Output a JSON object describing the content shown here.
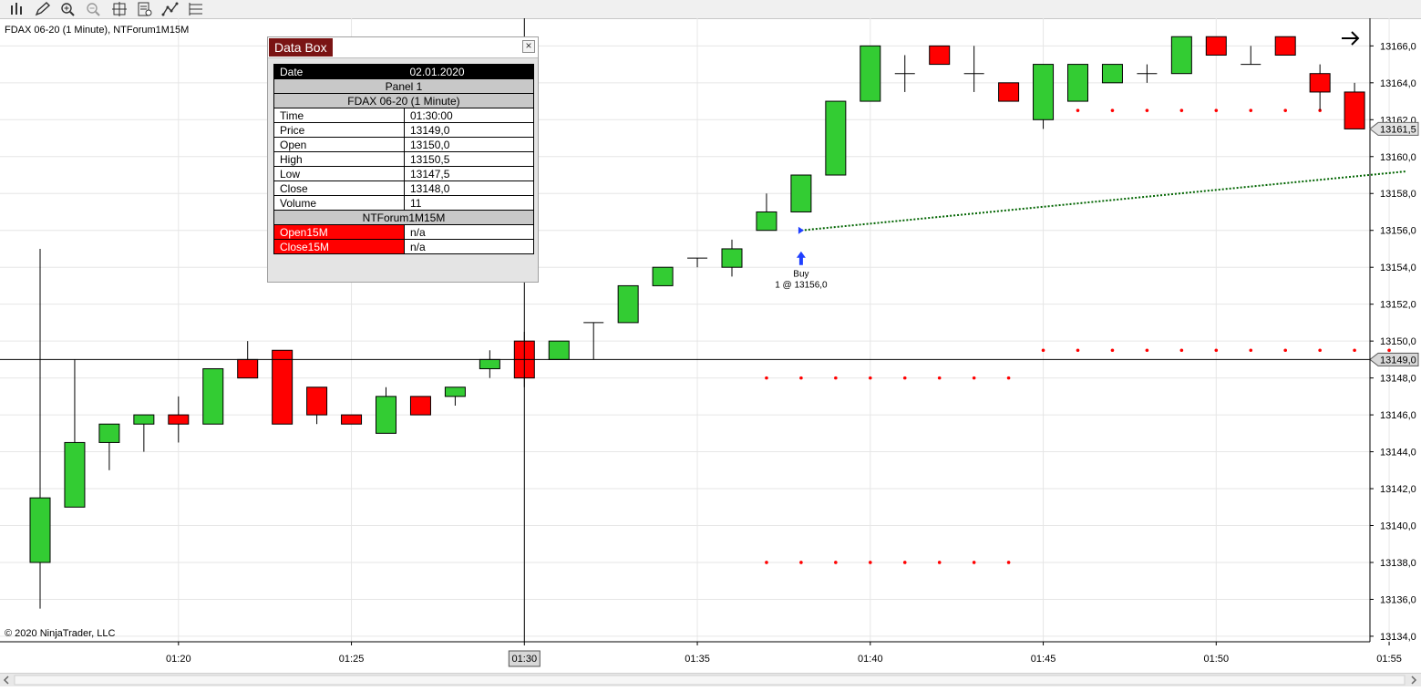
{
  "window": {
    "chart_label": "FDAX 06-20 (1 Minute), NTForum1M15M",
    "copyright": "© 2020 NinjaTrader, LLC"
  },
  "toolbar": {
    "icons": [
      "bars-icon",
      "pencil-icon",
      "zoom-in-icon",
      "zoom-out-icon",
      "crosshair-icon",
      "properties-icon",
      "strategy-icon",
      "list-icon"
    ]
  },
  "databox": {
    "title": "Data Box",
    "close_label": "×",
    "date_label": "Date",
    "date_value": "02.01.2020",
    "panel_label": "Panel 1",
    "instrument_label": "FDAX 06-20 (1 Minute)",
    "rows": [
      {
        "label": "Time",
        "value": "01:30:00"
      },
      {
        "label": "Price",
        "value": "13149,0"
      },
      {
        "label": "Open",
        "value": "13150,0"
      },
      {
        "label": "High",
        "value": "13150,5"
      },
      {
        "label": "Low",
        "value": "13147,5"
      },
      {
        "label": "Close",
        "value": "13148,0"
      },
      {
        "label": "Volume",
        "value": "11"
      }
    ],
    "indicator_label": "NTForum1M15M",
    "indicator_rows": [
      {
        "label": "Open15M",
        "value": "n/a"
      },
      {
        "label": "Close15M",
        "value": "n/a"
      }
    ]
  },
  "chart_data": {
    "type": "candlestick",
    "instrument": "FDAX 06-20 (1 Minute), NTForum1M15M",
    "ylim": [
      13133.7,
      13167.5
    ],
    "y_ticks": [
      "13134,0",
      "13136,0",
      "13138,0",
      "13140,0",
      "13142,0",
      "13144,0",
      "13146,0",
      "13148,0",
      "13150,0",
      "13152,0",
      "13154,0",
      "13156,0",
      "13158,0",
      "13160,0",
      "13162,0",
      "13164,0",
      "13166,0"
    ],
    "x_ticks": [
      {
        "bar": 4,
        "label": "01:20"
      },
      {
        "bar": 9,
        "label": "01:25"
      },
      {
        "bar": 14,
        "label": "01:30"
      },
      {
        "bar": 19,
        "label": "01:35"
      },
      {
        "bar": 24,
        "label": "01:40"
      },
      {
        "bar": 29,
        "label": "01:45"
      },
      {
        "bar": 34,
        "label": "01:50"
      },
      {
        "bar": 39,
        "label": "01:55"
      }
    ],
    "crosshair": {
      "bar": 14,
      "time_label": "01:30",
      "price": 13149.0,
      "price_label": "13149,0"
    },
    "last_price": {
      "value": 13161.5,
      "label": "13161,5"
    },
    "colors": {
      "up": "#33cc33",
      "down": "#ff0000",
      "dots": "#ff0000",
      "trend": "#006400",
      "grid": "#e6e6e6"
    },
    "bars": [
      {
        "o": 13138.0,
        "h": 13155.0,
        "l": 13135.5,
        "c": 13141.5
      },
      {
        "o": 13141.0,
        "h": 13149.0,
        "l": 13141.0,
        "c": 13144.5
      },
      {
        "o": 13144.5,
        "h": 13145.5,
        "l": 13143.0,
        "c": 13145.5
      },
      {
        "o": 13145.5,
        "h": 13146.0,
        "l": 13144.0,
        "c": 13146.0
      },
      {
        "o": 13146.0,
        "h": 13147.0,
        "l": 13144.5,
        "c": 13145.5
      },
      {
        "o": 13145.5,
        "h": 13148.5,
        "l": 13145.5,
        "c": 13148.5
      },
      {
        "o": 13149.0,
        "h": 13150.0,
        "l": 13148.0,
        "c": 13148.0
      },
      {
        "o": 13149.5,
        "h": 13149.5,
        "l": 13145.5,
        "c": 13145.5
      },
      {
        "o": 13147.5,
        "h": 13147.5,
        "l": 13145.5,
        "c": 13146.0
      },
      {
        "o": 13146.0,
        "h": 13146.0,
        "l": 13145.5,
        "c": 13145.5
      },
      {
        "o": 13145.0,
        "h": 13147.5,
        "l": 13145.0,
        "c": 13147.0
      },
      {
        "o": 13147.0,
        "h": 13147.0,
        "l": 13146.0,
        "c": 13146.0
      },
      {
        "o": 13147.0,
        "h": 13147.5,
        "l": 13146.5,
        "c": 13147.5
      },
      {
        "o": 13148.5,
        "h": 13149.5,
        "l": 13148.0,
        "c": 13149.0
      },
      {
        "o": 13150.0,
        "h": 13150.5,
        "l": 13147.5,
        "c": 13148.0
      },
      {
        "o": 13149.0,
        "h": 13150.0,
        "l": 13149.0,
        "c": 13150.0
      },
      {
        "o": 13151.0,
        "h": 13151.0,
        "l": 13149.0,
        "c": 13151.0
      },
      {
        "o": 13151.0,
        "h": 13153.0,
        "l": 13151.0,
        "c": 13153.0
      },
      {
        "o": 13153.0,
        "h": 13154.0,
        "l": 13153.0,
        "c": 13154.0
      },
      {
        "o": 13154.5,
        "h": 13154.5,
        "l": 13154.0,
        "c": 13154.5
      },
      {
        "o": 13154.0,
        "h": 13155.5,
        "l": 13153.5,
        "c": 13155.0
      },
      {
        "o": 13156.0,
        "h": 13158.0,
        "l": 13156.0,
        "c": 13157.0
      },
      {
        "o": 13157.0,
        "h": 13159.0,
        "l": 13157.0,
        "c": 13159.0
      },
      {
        "o": 13159.0,
        "h": 13163.0,
        "l": 13159.0,
        "c": 13163.0
      },
      {
        "o": 13163.0,
        "h": 13166.0,
        "l": 13163.0,
        "c": 13166.0
      },
      {
        "o": 13164.5,
        "h": 13165.5,
        "l": 13163.5,
        "c": 13164.5
      },
      {
        "o": 13166.0,
        "h": 13166.0,
        "l": 13165.0,
        "c": 13165.0
      },
      {
        "o": 13164.5,
        "h": 13166.0,
        "l": 13163.5,
        "c": 13164.5
      },
      {
        "o": 13164.0,
        "h": 13164.0,
        "l": 13163.0,
        "c": 13163.0
      },
      {
        "o": 13162.0,
        "h": 13165.0,
        "l": 13161.5,
        "c": 13165.0
      },
      {
        "o": 13163.0,
        "h": 13165.0,
        "l": 13163.0,
        "c": 13165.0
      },
      {
        "o": 13164.0,
        "h": 13165.0,
        "l": 13164.0,
        "c": 13165.0
      },
      {
        "o": 13164.5,
        "h": 13165.0,
        "l": 13164.0,
        "c": 13164.5
      },
      {
        "o": 13164.5,
        "h": 13166.5,
        "l": 13164.5,
        "c": 13166.5
      },
      {
        "o": 13166.5,
        "h": 13166.5,
        "l": 13165.5,
        "c": 13165.5
      },
      {
        "o": 13165.0,
        "h": 13166.0,
        "l": 13165.0,
        "c": 13165.0
      },
      {
        "o": 13166.5,
        "h": 13166.5,
        "l": 13165.5,
        "c": 13165.5
      },
      {
        "o": 13164.5,
        "h": 13165.0,
        "l": 13162.5,
        "c": 13163.5
      },
      {
        "o": 13163.5,
        "h": 13164.0,
        "l": 13161.5,
        "c": 13161.5
      }
    ],
    "dot_series": [
      {
        "price": 13148.0,
        "from_bar": 21,
        "to_bar": 28
      },
      {
        "price": 13138.0,
        "from_bar": 21,
        "to_bar": 28
      },
      {
        "price": 13162.5,
        "from_bar": 29,
        "to_bar": 38
      },
      {
        "price": 13149.5,
        "from_bar": 29,
        "to_bar": 39
      }
    ],
    "trend_line": {
      "from_bar": 22,
      "from_price": 13156.0,
      "to_bar": 39.5,
      "to_price": 13159.2
    },
    "trade": {
      "bar": 22,
      "price": 13156.0,
      "label": "Buy",
      "detail": "1 @ 13156,0"
    }
  }
}
